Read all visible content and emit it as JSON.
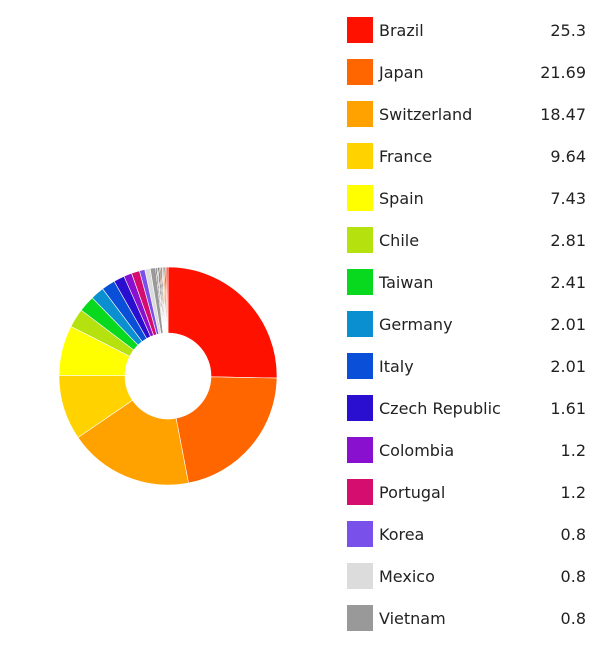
{
  "chart_data": {
    "type": "pie",
    "variant": "donut",
    "legend_position": "right",
    "slices": [
      {
        "label": "Brazil",
        "value": 25.3,
        "color": "#ff1100"
      },
      {
        "label": "Japan",
        "value": 21.69,
        "color": "#ff6600"
      },
      {
        "label": "Switzerland",
        "value": 18.47,
        "color": "#ffa200"
      },
      {
        "label": "France",
        "value": 9.64,
        "color": "#ffd200"
      },
      {
        "label": "Spain",
        "value": 7.43,
        "color": "#ffff00"
      },
      {
        "label": "Chile",
        "value": 2.81,
        "color": "#b5e20f"
      },
      {
        "label": "Taiwan",
        "value": 2.41,
        "color": "#08d91e"
      },
      {
        "label": "Germany",
        "value": 2.01,
        "color": "#0a8fd0"
      },
      {
        "label": "Italy",
        "value": 2.01,
        "color": "#0a4fd8"
      },
      {
        "label": "Czech Republic",
        "value": 1.61,
        "color": "#2a0fd0"
      },
      {
        "label": "Colombia",
        "value": 1.2,
        "color": "#8a10d0"
      },
      {
        "label": "Portugal",
        "value": 1.2,
        "color": "#d40d6e"
      },
      {
        "label": "Korea",
        "value": 0.8,
        "color": "#7a50ea"
      },
      {
        "label": "Mexico",
        "value": 0.8,
        "color": "#dcdcdc"
      },
      {
        "label": "Vietnam",
        "value": 0.8,
        "color": "#999999"
      }
    ],
    "unlisted_slice_colors": [
      "#3a3a3a",
      "#b0b0b0",
      "#111111",
      "#7a4a20",
      "#444444",
      "#c0c0c0",
      "#ff6a00",
      "#222222",
      "#ff3300",
      "#555555"
    ]
  }
}
